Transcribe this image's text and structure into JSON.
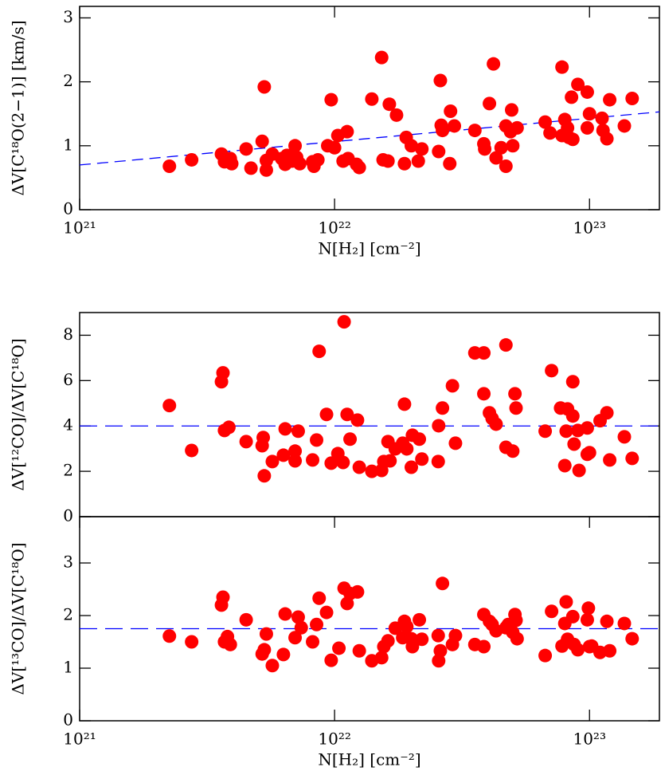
{
  "chart_data": [
    {
      "type": "scatter",
      "color": "#ff0000",
      "line_color": "#0000ff",
      "log_x": true,
      "x_label": "N[H₂] [cm⁻²]",
      "y_label": "ΔV[C¹⁸O(2−1)] [km/s]",
      "xlim": [
        1e+21,
        1.88e+23
      ],
      "ylim": [
        0,
        3.18
      ],
      "xticks": [
        {
          "value": 1e+21,
          "label": "10²¹"
        },
        {
          "value": 1e+22,
          "label": "10²²"
        },
        {
          "value": 1e+23,
          "label": "10²³"
        }
      ],
      "yticks": [
        0,
        1,
        2,
        3
      ],
      "fit_line": {
        "x": [
          1e+21,
          1.88e+23
        ],
        "y": [
          0.7,
          1.53
        ]
      },
      "x": [
        2.25e+21,
        2.75e+21,
        3.6e+21,
        3.7e+21,
        3.9e+21,
        3.95e+21,
        4.5e+21,
        4.7e+21,
        5.2e+21,
        5.3e+21,
        5.4e+21,
        5.4e+21,
        5.7e+21,
        6.2e+21,
        6.4e+21,
        6.5e+21,
        6.8e+21,
        7.1e+21,
        7e+21,
        7.3e+21,
        8.2e+21,
        8.6e+21,
        8.3e+21,
        9.4e+21,
        9.7e+21,
        1e+22,
        1.03e+22,
        1.12e+22,
        1.08e+22,
        1.13e+22,
        1.22e+22,
        1.25e+22,
        1.4e+22,
        1.53e+22,
        1.55e+22,
        1.62e+22,
        1.64e+22,
        1.75e+22,
        1.88e+22,
        1.91e+22,
        2e+22,
        2.13e+22,
        2.2e+22,
        2.6e+22,
        2.56e+22,
        2.62e+22,
        2.65e+22,
        2.85e+22,
        2.83e+22,
        2.95e+22,
        3.55e+22,
        3.85e+22,
        3.88e+22,
        4.05e+22,
        4.2e+22,
        4.3e+22,
        4.5e+22,
        4.7e+22,
        4.7e+22,
        4.9e+22,
        4.95e+22,
        5e+22,
        5.2e+22,
        6.7e+22,
        7e+22,
        7.8e+22,
        7.8e+22,
        8e+22,
        8.2e+22,
        8.3e+22,
        8.6e+22,
        8.5e+22,
        9e+22,
        9.8e+22,
        9.8e+22,
        1e+23,
        1.12e+23,
        1.13e+23,
        1.17e+23,
        1.2e+23,
        1.37e+23,
        1.47e+23
      ],
      "values": [
        0.68,
        0.78,
        0.87,
        0.75,
        0.8,
        0.72,
        0.95,
        0.65,
        1.07,
        1.92,
        0.62,
        0.77,
        0.87,
        0.8,
        0.71,
        0.85,
        0.76,
        0.82,
        1.0,
        0.72,
        0.75,
        0.78,
        0.68,
        1.0,
        1.72,
        0.97,
        1.16,
        1.22,
        0.76,
        0.8,
        0.71,
        0.66,
        1.73,
        2.38,
        0.78,
        0.76,
        1.65,
        1.48,
        0.72,
        1.13,
        1.0,
        0.76,
        0.95,
        2.02,
        0.91,
        1.32,
        1.24,
        1.54,
        0.72,
        1.31,
        1.24,
        1.03,
        0.95,
        1.66,
        2.28,
        0.81,
        0.97,
        0.68,
        1.31,
        1.22,
        1.56,
        1.0,
        1.28,
        1.37,
        1.2,
        2.23,
        1.16,
        1.41,
        1.28,
        1.13,
        1.1,
        1.76,
        1.96,
        1.84,
        1.28,
        1.5,
        1.43,
        1.24,
        1.11,
        1.72,
        1.31,
        1.74
      ]
    },
    {
      "type": "scatter",
      "color": "#ff0000",
      "line_color": "#0000ff",
      "log_x": true,
      "y_label": "ΔV[¹²CO]/ΔV[C¹⁸O]",
      "xlim": [
        1e+21,
        1.88e+23
      ],
      "ylim": [
        0,
        9
      ],
      "yticks": [
        0,
        2,
        4,
        6,
        8
      ],
      "reference_y": 4,
      "x": [
        2.25e+21,
        2.75e+21,
        3.6e+21,
        3.65e+21,
        3.7e+21,
        3.85e+21,
        4.5e+21,
        5.2e+21,
        5.25e+21,
        5.3e+21,
        5.7e+21,
        6.3e+21,
        6.4e+21,
        7e+21,
        7e+21,
        7.2e+21,
        8.2e+21,
        8.5e+21,
        8.7e+21,
        9.3e+21,
        9.7e+21,
        1.03e+22,
        1.08e+22,
        1.09e+22,
        1.12e+22,
        1.15e+22,
        1.23e+22,
        1.25e+22,
        1.4e+22,
        1.53e+22,
        1.56e+22,
        1.62e+22,
        1.65e+22,
        1.73e+22,
        1.85e+22,
        1.88e+22,
        1.92e+22,
        2e+22,
        2.02e+22,
        2.15e+22,
        2.2e+22,
        2.55e+22,
        2.56e+22,
        2.65e+22,
        2.9e+22,
        2.98e+22,
        3.55e+22,
        3.85e+22,
        3.85e+22,
        4.05e+22,
        4.15e+22,
        4.3e+22,
        4.7e+22,
        4.7e+22,
        5e+22,
        5.1e+22,
        5.15e+22,
        6.7e+22,
        7.1e+22,
        7.7e+22,
        8e+22,
        8.1e+22,
        8.2e+22,
        8.6e+22,
        8.6e+22,
        8.7e+22,
        9e+22,
        9.1e+22,
        9.8e+22,
        9.8e+22,
        1e+23,
        1.1e+23,
        1.17e+23,
        1.2e+23,
        1.37e+23,
        1.47e+23
      ],
      "values": [
        4.9,
        2.92,
        5.95,
        6.34,
        3.8,
        3.94,
        3.31,
        3.13,
        3.49,
        1.8,
        2.43,
        2.71,
        3.87,
        2.89,
        2.46,
        3.77,
        2.5,
        3.38,
        7.29,
        4.51,
        2.36,
        2.78,
        2.39,
        8.59,
        4.51,
        3.42,
        4.26,
        2.18,
        2.0,
        2.04,
        2.43,
        3.31,
        2.46,
        2.99,
        3.24,
        4.96,
        2.99,
        2.18,
        3.59,
        3.42,
        2.54,
        2.43,
        4.01,
        4.79,
        5.77,
        3.24,
        7.22,
        7.22,
        5.42,
        4.58,
        4.33,
        4.08,
        7.57,
        3.06,
        2.89,
        5.42,
        4.79,
        3.77,
        6.44,
        4.79,
        2.25,
        3.77,
        4.75,
        5.95,
        4.44,
        3.2,
        3.8,
        2.04,
        3.91,
        2.75,
        2.82,
        4.23,
        4.58,
        2.5,
        3.52,
        2.57
      ]
    },
    {
      "type": "scatter",
      "color": "#ff0000",
      "line_color": "#0000ff",
      "log_x": true,
      "x_label": "N[H₂] [cm⁻²]",
      "y_label": "ΔV[¹³CO]/ΔV[C¹⁸O]",
      "xlim": [
        1e+21,
        1.88e+23
      ],
      "ylim": [
        0,
        3.88
      ],
      "xticks": [
        {
          "value": 1e+21,
          "label": "10²¹"
        },
        {
          "value": 1e+22,
          "label": "10²²"
        },
        {
          "value": 1e+23,
          "label": "10²³"
        }
      ],
      "yticks": [
        0,
        1,
        2,
        3
      ],
      "reference_y": 1.75,
      "x": [
        2.25e+21,
        2.75e+21,
        3.6e+21,
        3.65e+21,
        3.7e+21,
        3.8e+21,
        3.9e+21,
        4.5e+21,
        5.2e+21,
        5.3e+21,
        5.4e+21,
        5.7e+21,
        6.3e+21,
        6.4e+21,
        7e+21,
        7.2e+21,
        7.4e+21,
        8.2e+21,
        8.5e+21,
        8.7e+21,
        9.3e+21,
        9.7e+21,
        1.04e+22,
        1.09e+22,
        1.12e+22,
        1.15e+22,
        1.23e+22,
        1.25e+22,
        1.4e+22,
        1.53e+22,
        1.56e+22,
        1.62e+22,
        1.73e+22,
        1.85e+22,
        1.88e+22,
        1.92e+22,
        2e+22,
        2.02e+22,
        2.15e+22,
        2.2e+22,
        2.55e+22,
        2.56e+22,
        2.6e+22,
        2.65e+22,
        2.9e+22,
        2.98e+22,
        3.55e+22,
        3.85e+22,
        3.85e+22,
        4.05e+22,
        4.15e+22,
        4.3e+22,
        4.7e+22,
        4.8e+22,
        5e+22,
        5.1e+22,
        5.15e+22,
        5.2e+22,
        6.7e+22,
        7.1e+22,
        7.8e+22,
        8e+22,
        8.1e+22,
        8.2e+22,
        8.6e+22,
        8.7e+22,
        9e+22,
        9.8e+22,
        9.9e+22,
        1e+23,
        1.02e+23,
        1.1e+23,
        1.17e+23,
        1.2e+23,
        1.37e+23,
        1.47e+23
      ],
      "values": [
        1.61,
        1.5,
        2.2,
        2.35,
        1.5,
        1.6,
        1.45,
        1.92,
        1.27,
        1.35,
        1.65,
        1.05,
        1.26,
        2.03,
        1.58,
        1.97,
        1.77,
        1.5,
        1.83,
        2.33,
        2.06,
        1.15,
        1.38,
        2.52,
        2.23,
        2.42,
        2.45,
        1.33,
        1.14,
        1.2,
        1.41,
        1.52,
        1.76,
        1.58,
        1.89,
        1.79,
        1.56,
        1.41,
        1.92,
        1.55,
        1.62,
        1.14,
        1.33,
        2.61,
        1.45,
        1.62,
        1.45,
        2.02,
        1.41,
        1.89,
        1.83,
        1.71,
        1.77,
        1.83,
        1.68,
        2.02,
        1.91,
        1.56,
        1.24,
        2.08,
        1.42,
        1.85,
        2.26,
        1.55,
        1.98,
        1.45,
        1.35,
        1.92,
        2.14,
        1.41,
        1.42,
        1.3,
        1.89,
        1.33,
        1.85,
        1.56
      ]
    }
  ]
}
